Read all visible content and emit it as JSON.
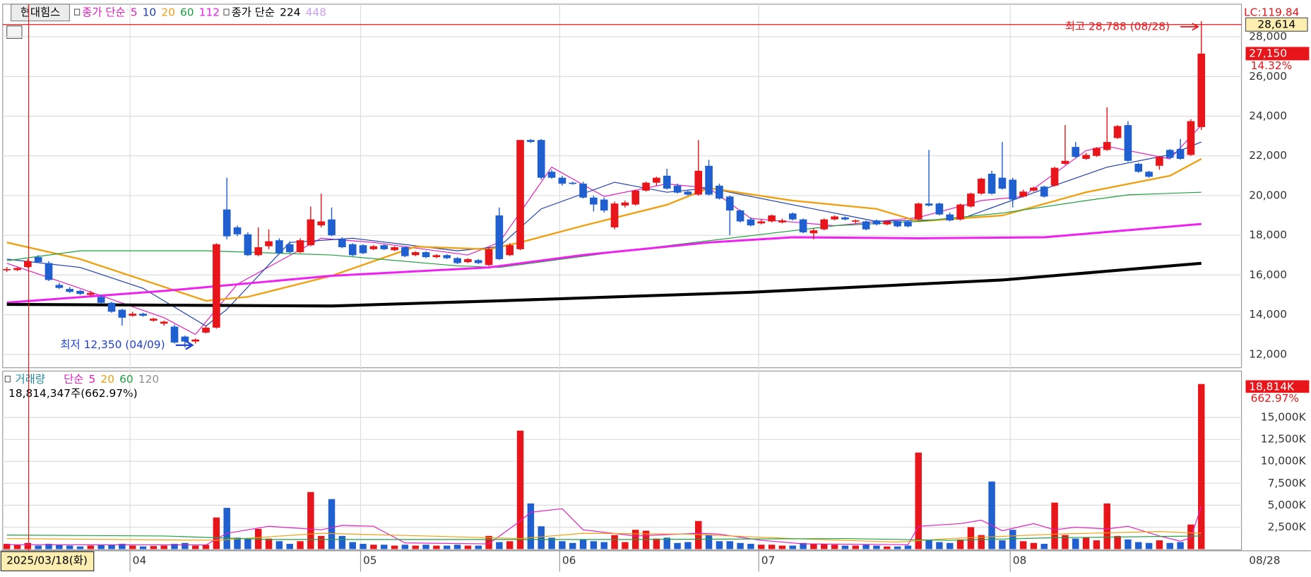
{
  "chart_data": {
    "type": "candlestick",
    "title": "현대힘스",
    "legend_prefix": "종가 단순",
    "categories": [
      null,
      null,
      null,
      null,
      null,
      null,
      null,
      null,
      null,
      null,
      null,
      null,
      "04",
      null,
      null,
      null,
      null,
      null,
      null,
      null,
      null,
      null,
      null,
      null,
      null,
      null,
      null,
      null,
      null,
      null,
      null,
      null,
      null,
      null,
      "05",
      null,
      null,
      null,
      null,
      null,
      null,
      null,
      null,
      null,
      null,
      null,
      null,
      null,
      null,
      null,
      null,
      null,
      null,
      "06",
      null,
      null,
      null,
      null,
      null,
      null,
      null,
      null,
      null,
      null,
      null,
      null,
      null,
      null,
      null,
      null,
      null,
      null,
      "07",
      null,
      null,
      null,
      null,
      null,
      null,
      null,
      null,
      null,
      null,
      null,
      null,
      null,
      null,
      null,
      null,
      null,
      null,
      null,
      null,
      null,
      null,
      null,
      "08",
      null,
      null,
      null,
      null,
      null,
      null,
      null,
      null,
      null,
      null,
      null,
      null,
      null,
      null,
      null,
      null,
      null,
      null
    ],
    "open": [
      16250,
      16250,
      16400,
      16900,
      16600,
      15500,
      15300,
      15200,
      15000,
      14900,
      14600,
      14250,
      13950,
      14050,
      13700,
      13550,
      13400,
      12900,
      12650,
      13100,
      13350,
      19300,
      18400,
      18050,
      17000,
      17450,
      17750,
      17550,
      17150,
      17500,
      18500,
      18800,
      17800,
      17550,
      17500,
      17300,
      17500,
      17250,
      17400,
      17000,
      17150,
      16900,
      17000,
      16850,
      16650,
      16750,
      16500,
      19000,
      17000,
      17300,
      22800,
      22800,
      21200,
      20900,
      20650,
      20600,
      19900,
      19800,
      18400,
      19500,
      19550,
      20250,
      20650,
      21000,
      20500,
      20200,
      20050,
      21500,
      20500,
      19950,
      19250,
      18800,
      18600,
      18700,
      18650,
      19100,
      18800,
      18100,
      18300,
      18800,
      18900,
      18700,
      18700,
      18750,
      18550,
      18700,
      18700,
      18800,
      19600,
      19600,
      19050,
      18800,
      19450,
      20100,
      21100,
      20900,
      20800,
      19950,
      20250,
      20450,
      20500,
      21600,
      22450,
      21850,
      22000,
      22300,
      22900,
      23550,
      21600,
      21200,
      21500,
      22300,
      22350,
      22050,
      23450
    ],
    "high": [
      16400,
      16400,
      16800,
      17000,
      16700,
      15600,
      15400,
      15250,
      15200,
      15000,
      14650,
      14300,
      14150,
      14100,
      13850,
      13700,
      13500,
      12950,
      12800,
      13450,
      17600,
      20900,
      18500,
      18150,
      18400,
      18300,
      17850,
      17700,
      17850,
      19450,
      20100,
      19400,
      17900,
      17600,
      17550,
      17500,
      17550,
      17450,
      17450,
      17200,
      17200,
      17050,
      17050,
      16900,
      16850,
      16800,
      17400,
      19400,
      17600,
      22800,
      22850,
      22850,
      21300,
      21000,
      20700,
      20700,
      20000,
      19900,
      19700,
      19750,
      20300,
      20700,
      20950,
      21350,
      20600,
      20300,
      22800,
      21800,
      20600,
      20000,
      19300,
      18900,
      18800,
      19050,
      18850,
      19150,
      18850,
      18350,
      18850,
      19000,
      18950,
      18800,
      18750,
      18800,
      18750,
      18750,
      18750,
      19650,
      22300,
      19650,
      19150,
      19600,
      20150,
      20900,
      21250,
      22700,
      20900,
      20300,
      20450,
      20500,
      21450,
      23550,
      22700,
      22150,
      22450,
      24450,
      23550,
      23750,
      21650,
      21250,
      22000,
      22350,
      22850,
      23850,
      28788
    ],
    "low": [
      16150,
      16200,
      16350,
      16600,
      15700,
      15300,
      15100,
      15000,
      14950,
      14550,
      14100,
      13450,
      13900,
      13900,
      13650,
      13450,
      12550,
      12350,
      12550,
      13050,
      13300,
      17800,
      17950,
      16950,
      16950,
      17300,
      17050,
      17100,
      17100,
      17450,
      18400,
      17950,
      17350,
      16950,
      17050,
      17250,
      17250,
      17200,
      16900,
      16950,
      16850,
      16850,
      16800,
      16550,
      16600,
      16550,
      16450,
      16750,
      16950,
      17250,
      22650,
      20800,
      20850,
      20500,
      20550,
      19850,
      19200,
      19150,
      18300,
      19400,
      19500,
      20200,
      20500,
      20300,
      20100,
      20000,
      20000,
      20000,
      19800,
      18000,
      18650,
      18450,
      18550,
      18650,
      18600,
      18750,
      18100,
      17800,
      18250,
      18750,
      18750,
      18600,
      18250,
      18500,
      18500,
      18400,
      18400,
      18750,
      19450,
      19000,
      18700,
      18750,
      19400,
      20050,
      20050,
      20300,
      19400,
      19900,
      20200,
      19900,
      20450,
      21550,
      21900,
      21800,
      21950,
      22250,
      22850,
      21700,
      21150,
      20900,
      21300,
      21850,
      21800,
      22000,
      23300
    ],
    "close": [
      16300,
      16350,
      16700,
      16650,
      15750,
      15350,
      15150,
      15050,
      15100,
      14600,
      14150,
      13850,
      14050,
      13950,
      13800,
      13650,
      12600,
      12650,
      12750,
      13350,
      17550,
      17950,
      18050,
      17000,
      17400,
      17700,
      17100,
      17150,
      17750,
      18800,
      18700,
      18000,
      17400,
      17000,
      17100,
      17450,
      17300,
      17400,
      16950,
      17150,
      16900,
      17000,
      16850,
      16600,
      16800,
      16600,
      17300,
      16800,
      17500,
      22800,
      22700,
      20900,
      20900,
      20600,
      20600,
      19900,
      19550,
      19250,
      19600,
      19650,
      20250,
      20650,
      20900,
      20350,
      20150,
      20050,
      21250,
      20050,
      19850,
      19250,
      18700,
      18500,
      18700,
      19000,
      18750,
      18800,
      18150,
      18250,
      18800,
      18950,
      18800,
      18750,
      18300,
      18550,
      18700,
      18450,
      18450,
      19600,
      19500,
      19050,
      18750,
      19550,
      20100,
      20850,
      20100,
      20350,
      19800,
      20200,
      20400,
      19950,
      21400,
      21750,
      21950,
      22050,
      22400,
      22700,
      23500,
      21750,
      21200,
      20950,
      21950,
      21900,
      21850,
      23750,
      27150
    ],
    "up_color": "#e8161b",
    "down_color": "#1f5fd0",
    "ylim": [
      11330,
      29640
    ],
    "yticks": [
      {
        "value": 12000,
        "label": "12,000"
      },
      {
        "value": 14000,
        "label": "14,000"
      },
      {
        "value": 16000,
        "label": "16,000"
      },
      {
        "value": 18000,
        "label": "18,000"
      },
      {
        "value": 20000,
        "label": "20,000"
      },
      {
        "value": 22000,
        "label": "22,000"
      },
      {
        "value": 24000,
        "label": "24,000"
      },
      {
        "value": 26000,
        "label": "26,000"
      },
      {
        "value": 28000,
        "label": "28,000"
      }
    ],
    "grid": true,
    "series": [
      {
        "name": "5",
        "color": "#e020c0",
        "width": 1,
        "x": [
          0,
          7,
          15,
          18,
          22,
          30,
          35,
          44,
          47,
          52,
          57,
          63,
          67,
          71,
          79,
          87,
          93,
          97,
          103,
          105,
          111,
          114
        ],
        "values": [
          16590,
          15330,
          13850,
          13010,
          15540,
          17850,
          17640,
          17010,
          17640,
          21430,
          19960,
          20590,
          20380,
          18850,
          18480,
          18900,
          19750,
          19960,
          22270,
          22480,
          21850,
          23540
        ]
      },
      {
        "name": "10",
        "color": "#1f3fb0",
        "width": 1,
        "x": [
          0,
          7,
          13,
          19,
          21,
          27,
          33,
          43,
          47,
          51,
          58,
          63,
          67,
          75,
          83,
          91,
          97,
          105,
          111,
          114
        ],
        "values": [
          16800,
          16380,
          15330,
          13430,
          14270,
          17640,
          17850,
          17220,
          17430,
          19330,
          20670,
          20170,
          20380,
          19540,
          18700,
          18820,
          19960,
          21430,
          22060,
          22700
        ]
      },
      {
        "name": "20",
        "color": "#f0a010",
        "width": 2,
        "x": [
          0,
          7,
          19,
          23,
          31,
          39,
          46,
          49,
          55,
          63,
          67,
          75,
          83,
          87,
          95,
          103,
          111,
          114
        ],
        "values": [
          17640,
          16800,
          14700,
          14900,
          15960,
          17430,
          17300,
          17640,
          18480,
          19540,
          20380,
          19750,
          19330,
          18700,
          19000,
          20170,
          21000,
          21850
        ]
      },
      {
        "name": "60",
        "color": "#20a040",
        "width": 1,
        "x": [
          0,
          7,
          19,
          31,
          43,
          47,
          59,
          71,
          79,
          87,
          95,
          103,
          107,
          114
        ],
        "values": [
          16720,
          17220,
          17220,
          17010,
          16460,
          16380,
          17220,
          17980,
          18480,
          18700,
          19120,
          19750,
          20040,
          20170
        ]
      },
      {
        "name": "112",
        "color": "#f020f0",
        "width": 2.5,
        "x": [
          0,
          15,
          31,
          46,
          55,
          67,
          75,
          87,
          99,
          114
        ],
        "values": [
          14610,
          15200,
          15960,
          16380,
          17010,
          17640,
          17900,
          17850,
          17900,
          18570
        ]
      },
      {
        "name": "224",
        "color": "#000000",
        "width": 3.5,
        "x": [
          0,
          31,
          47,
          71,
          95,
          114
        ],
        "values": [
          14520,
          14440,
          14700,
          15130,
          15750,
          16590
        ]
      },
      {
        "name": "448",
        "color": "#c8a0f0",
        "width": 1,
        "x": [],
        "values": []
      }
    ],
    "high_note": "최고 28,788 (08/28)",
    "low_note": "최저 12,350 (04/09)",
    "lc_label": "LC:119.84",
    "cursor_price": {
      "value": 28614,
      "label": "28,614"
    },
    "last_price": {
      "value": 27150,
      "label": "27,150"
    },
    "change_label": "14.32%",
    "cursor_date": "2025/03/18(화)",
    "last_date": "08/28",
    "volume": {
      "title": "거래량",
      "legend_prefix": "단순",
      "info": "18,814,347주(662.97%)",
      "last_label": "18,814K",
      "ratio_label": "662.97%",
      "values": [
        600,
        500,
        700,
        400,
        600,
        500,
        400,
        300,
        400,
        500,
        500,
        600,
        400,
        300,
        350,
        400,
        600,
        700,
        400,
        500,
        3600,
        4700,
        1300,
        1200,
        2300,
        1200,
        900,
        600,
        900,
        6500,
        1500,
        5700,
        1500,
        800,
        600,
        500,
        500,
        400,
        500,
        400,
        500,
        400,
        400,
        500,
        400,
        400,
        1500,
        800,
        900,
        13500,
        5200,
        2600,
        1300,
        900,
        700,
        1100,
        900,
        800,
        1600,
        800,
        2200,
        2100,
        1200,
        1300,
        700,
        800,
        3200,
        1600,
        900,
        900,
        700,
        600,
        500,
        500,
        400,
        400,
        700,
        600,
        600,
        500,
        400,
        400,
        500,
        400,
        300,
        300,
        400,
        11000,
        1000,
        800,
        700,
        1100,
        2500,
        1600,
        7700,
        1000,
        2200,
        900,
        700,
        600,
        5300,
        1600,
        1200,
        1300,
        1000,
        5200,
        1500,
        1100,
        800,
        700,
        1000,
        700,
        800,
        2800,
        18814
      ],
      "ylim": [
        0,
        20000
      ],
      "yticks": [
        {
          "value": 2500,
          "label": "2,500K"
        },
        {
          "value": 5000,
          "label": "5,000K"
        },
        {
          "value": 7500,
          "label": "7,500K"
        },
        {
          "value": 10000,
          "label": "10,000K"
        },
        {
          "value": 12500,
          "label": "12,500K"
        },
        {
          "value": 15000,
          "label": "15,000K"
        }
      ],
      "series": [
        {
          "name": "5",
          "color": "#e020c0",
          "x": [
            0,
            19,
            21,
            25,
            30,
            32,
            35,
            38,
            46,
            49,
            50,
            53,
            55,
            60,
            66,
            68,
            72,
            76,
            86,
            87,
            91,
            93,
            95,
            98,
            100,
            102,
            105,
            107,
            110,
            112,
            113,
            114
          ],
          "values": [
            500,
            480,
            1800,
            2600,
            2200,
            2700,
            2600,
            700,
            600,
            3200,
            4200,
            4600,
            2200,
            1500,
            1800,
            1700,
            1000,
            600,
            500,
            2600,
            2900,
            3300,
            2100,
            2900,
            2200,
            2500,
            2300,
            2600,
            1500,
            900,
            1300,
            4900
          ]
        },
        {
          "name": "20",
          "color": "#f0a010",
          "x": [
            0,
            20,
            30,
            40,
            49,
            55,
            65,
            75,
            85,
            90,
            100,
            110,
            114
          ],
          "values": [
            1200,
            1000,
            1800,
            1500,
            1200,
            1800,
            1700,
            1200,
            800,
            1200,
            1700,
            2000,
            1800
          ]
        },
        {
          "name": "60",
          "color": "#20a040",
          "x": [
            0,
            15,
            25,
            45,
            60,
            80,
            90,
            100,
            114
          ],
          "values": [
            1600,
            1500,
            1100,
            1100,
            1100,
            1200,
            1000,
            1300,
            1500
          ]
        },
        {
          "name": "120",
          "color": "#909090",
          "x": [],
          "values": []
        }
      ]
    }
  }
}
